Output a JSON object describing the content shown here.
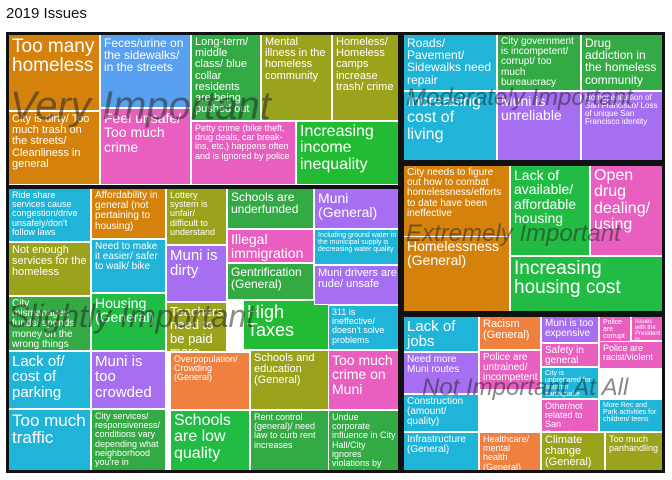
{
  "chart_data": {
    "type": "treemap",
    "title": "2019 Issues",
    "groups": [
      {
        "name": "Very Important",
        "label_size": 40,
        "cells": [
          {
            "label": "Too many homeless",
            "color": "#d4820c",
            "fs": 19
          },
          {
            "label": "City is dirty/ Too much trash on the streets/ Cleanliness in general",
            "color": "#d4820c",
            "fs": 11
          },
          {
            "label": "Feces/urine on the sidewalks/ in the streets",
            "color": "#5aa0f0",
            "fs": 12
          },
          {
            "label": "Feel unsafe/ Too much crime",
            "color": "#e95fc0",
            "fs": 14
          },
          {
            "label": "Long-term/ middle class/ blue collar residents are being pushed out",
            "color": "#33aa44",
            "fs": 11
          },
          {
            "label": "Petty crime (bike theft, drug deals, car break-ins, etc.) happens often and is ignored by police",
            "color": "#e95fc0",
            "fs": 9
          },
          {
            "label": "Mental illness in the homeless community",
            "color": "#9ba31c",
            "fs": 11
          },
          {
            "label": "Homeless/ Homeless camps increase trash/ crime",
            "color": "#9ba31c",
            "fs": 11
          },
          {
            "label": "Increasing income inequality",
            "color": "#22bb33",
            "fs": 16
          }
        ]
      },
      {
        "name": "Moderately Important",
        "label_size": 24,
        "cells": [
          {
            "label": "Roads/ Pavement/ Sidewalks need repair",
            "color": "#1fb4d8",
            "fs": 12
          },
          {
            "label": "Increasing cost of living",
            "color": "#1fb4d8",
            "fs": 16
          },
          {
            "label": "City government is incompetent/ corrupt/ too much bureaucracy",
            "color": "#33aa44",
            "fs": 10
          },
          {
            "label": "Drug addiction in the homeless community",
            "color": "#33aa44",
            "fs": 12
          },
          {
            "label": "Muni is unreliable",
            "color": "#a66ef0",
            "fs": 14
          },
          {
            "label": "Homogenization of San Francisco/ Loss of unique San Francisco identity",
            "color": "#a66ef0",
            "fs": 8
          }
        ]
      },
      {
        "name": "Extremely Important",
        "label_size": 24,
        "cells": [
          {
            "label": "City needs to figure out how to combat homelessness/efforts to date have been ineffective",
            "color": "#d4820c",
            "fs": 10
          },
          {
            "label": "Homelessness (General)",
            "color": "#d4820c",
            "fs": 14
          },
          {
            "label": "Lack of available/ affordable housing",
            "color": "#22bb44",
            "fs": 14
          },
          {
            "label": "Open drug dealing/ using",
            "color": "#e95fc0",
            "fs": 16
          },
          {
            "label": "Increasing housing cost",
            "color": "#22bb44",
            "fs": 19
          }
        ]
      },
      {
        "name": "Slightly Important",
        "label_size": 32,
        "cells": [
          {
            "label": "Ride share services cause congestion/drive unsafely/don't follow laws",
            "color": "#1fb4d8",
            "fs": 9
          },
          {
            "label": "Not enough services for the homeless",
            "color": "#9ba31c",
            "fs": 11
          },
          {
            "label": "City mismanages funds/ spends money on the wrong things",
            "color": "#33aa44",
            "fs": 10
          },
          {
            "label": "Lack of/ cost of parking",
            "color": "#1fb4d8",
            "fs": 15
          },
          {
            "label": "Too much traffic",
            "color": "#1fb4d8",
            "fs": 17
          },
          {
            "label": "Affordability in general (not pertaining to housing)",
            "color": "#d4820c",
            "fs": 10
          },
          {
            "label": "Need to make it easier/ safer to walk/ bike",
            "color": "#1fb4d8",
            "fs": 10
          },
          {
            "label": "Housing (General)",
            "color": "#22bb44",
            "fs": 14
          },
          {
            "label": "Muni is too crowded",
            "color": "#a66ef0",
            "fs": 15
          },
          {
            "label": "City services/ responsiveness/ conditions vary depending what neighborhood you're in",
            "color": "#33aa44",
            "fs": 9
          },
          {
            "label": "Lottery system is unfair/ difficult to understand",
            "color": "#9ba31c",
            "fs": 9
          },
          {
            "label": "Muni is dirty",
            "color": "#a66ef0",
            "fs": 15
          },
          {
            "label": "Teachers need to be paid more",
            "color": "#9ba31c",
            "fs": 13
          },
          {
            "label": "Overpopulation/ Crowding (General)",
            "color": "#f08040",
            "fs": 9
          },
          {
            "label": "Schools are low quality",
            "color": "#22bb44",
            "fs": 16
          },
          {
            "label": "Schools are underfunded",
            "color": "#33aa44",
            "fs": 12
          },
          {
            "label": "Illegal immigration",
            "color": "#e95fc0",
            "fs": 14
          },
          {
            "label": "Gentrification (General)",
            "color": "#33aa44",
            "fs": 12
          },
          {
            "label": "High Taxes",
            "color": "#22bb33",
            "fs": 18
          },
          {
            "label": "Schools and education (General)",
            "color": "#9ba31c",
            "fs": 11
          },
          {
            "label": "Rent control (general)/ need law to curb rent increases",
            "color": "#33aa44",
            "fs": 9
          },
          {
            "label": "Muni (General)",
            "color": "#a66ef0",
            "fs": 14
          },
          {
            "label": "Including ground water in the municipal supply is decreasing water quality",
            "color": "#1fb4d8",
            "fs": 7
          },
          {
            "label": "Muni drivers are rude/ unsafe",
            "color": "#a66ef0",
            "fs": 11
          },
          {
            "label": "311 is ineffective/ doesn't solve problems",
            "color": "#1fb4d8",
            "fs": 9
          },
          {
            "label": "Too much crime on Muni",
            "color": "#e95fc0",
            "fs": 14
          },
          {
            "label": "Undue corporate influence in City Hall/City ignores violations by corporate interests",
            "color": "#33aa44",
            "fs": 9
          }
        ]
      },
      {
        "name": "Not Important At All",
        "label_size": 24,
        "cells": [
          {
            "label": "Lack of jobs",
            "color": "#1fb4d8",
            "fs": 15
          },
          {
            "label": "Need more Muni routes",
            "color": "#a66ef0",
            "fs": 10
          },
          {
            "label": "Construction (amount/ quality)",
            "color": "#1fb4d8",
            "fs": 10
          },
          {
            "label": "Infrastructure (General)",
            "color": "#1fb4d8",
            "fs": 10
          },
          {
            "label": "Racism (General)",
            "color": "#f08040",
            "fs": 11
          },
          {
            "label": "Police are untrained/ incompetent",
            "color": "#e95fc0",
            "fs": 10
          },
          {
            "label": "Healthcare/ mental health (General)",
            "color": "#f08040",
            "fs": 9
          },
          {
            "label": "Muni is too expensive",
            "color": "#a66ef0",
            "fs": 10
          },
          {
            "label": "Safety in general",
            "color": "#e95fc0",
            "fs": 10
          },
          {
            "label": "City is unprepared for another earthquake",
            "color": "#1fb4d8",
            "fs": 7
          },
          {
            "label": "Other/not related to San Francisco",
            "color": "#e95fc0",
            "fs": 9
          },
          {
            "label": "Climate change (General)",
            "color": "#9ba31c",
            "fs": 11
          },
          {
            "label": "Police are corrupt",
            "color": "#e95fc0",
            "fs": 7
          },
          {
            "label": "Issues with the President in general",
            "color": "#e95fc0",
            "fs": 6
          },
          {
            "label": "Police are racist/violent",
            "color": "#e95fc0",
            "fs": 9
          },
          {
            "label": "More Rec and Park activities for children/ teens",
            "color": "#1fb4d8",
            "fs": 7
          },
          {
            "label": "Too much panhandling",
            "color": "#9ba31c",
            "fs": 9
          }
        ]
      }
    ]
  }
}
